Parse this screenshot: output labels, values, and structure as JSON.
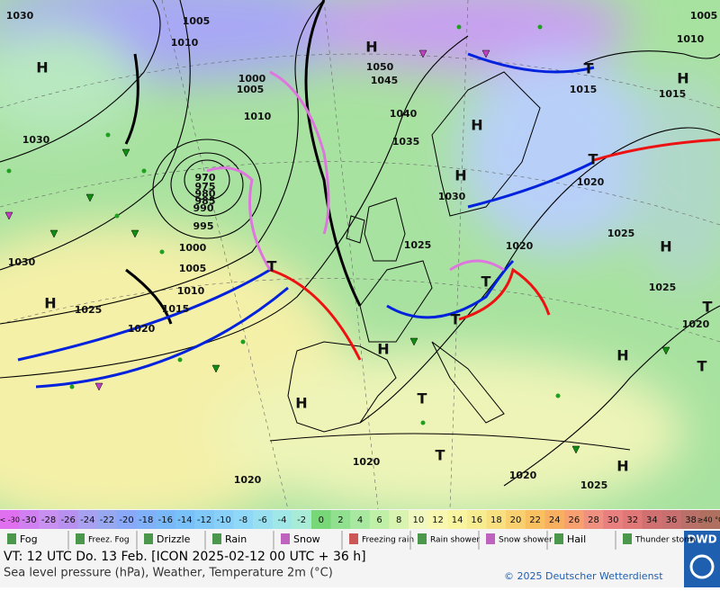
{
  "map": {
    "pressure_labels": [
      1030,
      1005,
      1010,
      1000,
      1005,
      1010,
      1030,
      1050,
      1045,
      1040,
      1035,
      1030,
      1025,
      1020,
      1025,
      1015,
      1015,
      1010,
      1005,
      1020,
      970,
      975,
      980,
      985,
      990,
      995,
      1000,
      1005,
      1010,
      1015,
      1025,
      1020,
      1030,
      1025,
      1020,
      1020,
      1020,
      1020,
      1025
    ],
    "centers": [
      "H",
      "H",
      "H",
      "H",
      "H",
      "T",
      "T",
      "T",
      "H",
      "H",
      "H",
      "T",
      "T",
      "H",
      "T",
      "T",
      "H",
      "T",
      "T",
      "H"
    ]
  },
  "temperature_scale": {
    "labels": [
      "< -30",
      -30,
      -28,
      -26,
      -24,
      -22,
      -20,
      -18,
      -16,
      -14,
      -12,
      -10,
      -8,
      -6,
      -4,
      -2,
      0,
      2,
      4,
      6,
      8,
      10,
      12,
      14,
      16,
      18,
      20,
      22,
      24,
      26,
      28,
      30,
      32,
      34,
      36,
      38,
      "≥40 °C"
    ],
    "colors": [
      "#e070f0",
      "#d080f0",
      "#c890f0",
      "#b890f0",
      "#a8a0f0",
      "#98a8f0",
      "#8aa8f8",
      "#80b0f8",
      "#78b8f8",
      "#78c0f8",
      "#80c8f8",
      "#88d0f8",
      "#90d8f8",
      "#98e0f0",
      "#a0e8e8",
      "#a8ecd8",
      "#78d878",
      "#90e090",
      "#a8e8a0",
      "#c0f0a8",
      "#d8f4b0",
      "#f0f8c0",
      "#f8f8b0",
      "#f8f4a0",
      "#f8ec90",
      "#f8e080",
      "#f8d070",
      "#f8c060",
      "#f8b060",
      "#f8a070",
      "#f09080",
      "#e88080",
      "#e07878",
      "#d07070",
      "#c87070",
      "#b87068",
      "#b07060"
    ]
  },
  "legend": [
    "Fog",
    "Freez. Fog",
    "Drizzle",
    "Rain",
    "Snow",
    "Freezing rain",
    "Rain shower",
    "Snow shower",
    "Hail",
    "Thunder storm"
  ],
  "footer": {
    "valid_time": "VT: 12 UTC Do.  13 Feb. [ICON 2025-02-12  00 UTC + 36 h]",
    "description": "Sea level pressure (hPa), Weather, Temperature 2m (°C)",
    "copyright": "© 2025 Deutscher Wetterdienst",
    "logo": "DWD"
  }
}
